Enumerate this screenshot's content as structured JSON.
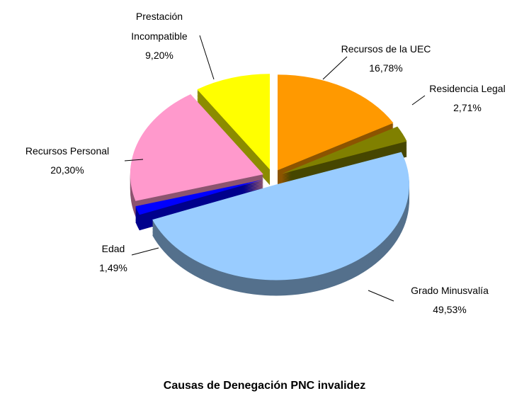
{
  "chart_data": {
    "type": "pie",
    "title": "Causas de Denegación PNC invalidez",
    "categories": [
      "Recursos de la UEC",
      "Residencia Legal",
      "Grado Minusvalía",
      "Edad",
      "Recursos Personal",
      "Prestación Incompatible"
    ],
    "values": [
      16.78,
      2.71,
      49.53,
      1.49,
      20.3,
      9.2
    ],
    "value_labels": [
      "16,78%",
      "2,71%",
      "49,53%",
      "1,49%",
      "20,30%",
      "9,20%"
    ],
    "colors": [
      "#ff9900",
      "#808000",
      "#99ccff",
      "#0000ff",
      "#ff99cc",
      "#ffff00"
    ]
  }
}
